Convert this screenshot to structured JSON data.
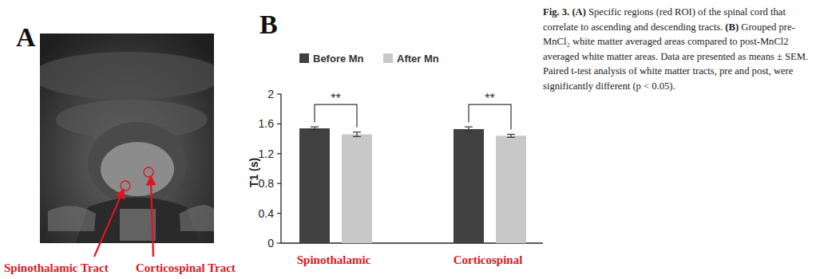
{
  "chart_data": {
    "type": "bar",
    "categories": [
      "Spinothalamic",
      "Corticospinal"
    ],
    "series": [
      {
        "name": "Before Mn",
        "color": "#404040",
        "values": [
          1.54,
          1.53
        ],
        "errors": [
          0.02,
          0.03
        ]
      },
      {
        "name": "After Mn",
        "color": "#c8c8c8",
        "values": [
          1.46,
          1.44
        ],
        "errors": [
          0.03,
          0.02
        ]
      }
    ],
    "y_label": "T1 (s)",
    "ylim": [
      0,
      2
    ],
    "yticks": [
      0,
      0.4,
      0.8,
      1.2,
      1.6,
      2
    ],
    "legend": "top",
    "annotations": [
      {
        "text": "**",
        "category": 0
      },
      {
        "text": "**",
        "category": 1
      }
    ]
  },
  "panel_a": {
    "letter": "A",
    "labels": [
      "Spinothalamic Tract",
      "Corticospinal Tract"
    ]
  },
  "panel_b": {
    "letter": "B"
  },
  "caption": {
    "label": "Fig. 3.",
    "parts": [
      {
        "tag": "(A)",
        "text": "Specific regions (red ROI) of the spinal cord that correlate to ascending and descending tracts."
      },
      {
        "tag": "(B)",
        "text": "Grouped pre-MnCl₂ white matter averaged areas compared to post-MnCl2 averaged white matter areas. Data are presented as means ± SEM. Paired t-test analysis of white matter tracts, pre and post, were significantly different (p < 0.05)."
      }
    ]
  }
}
